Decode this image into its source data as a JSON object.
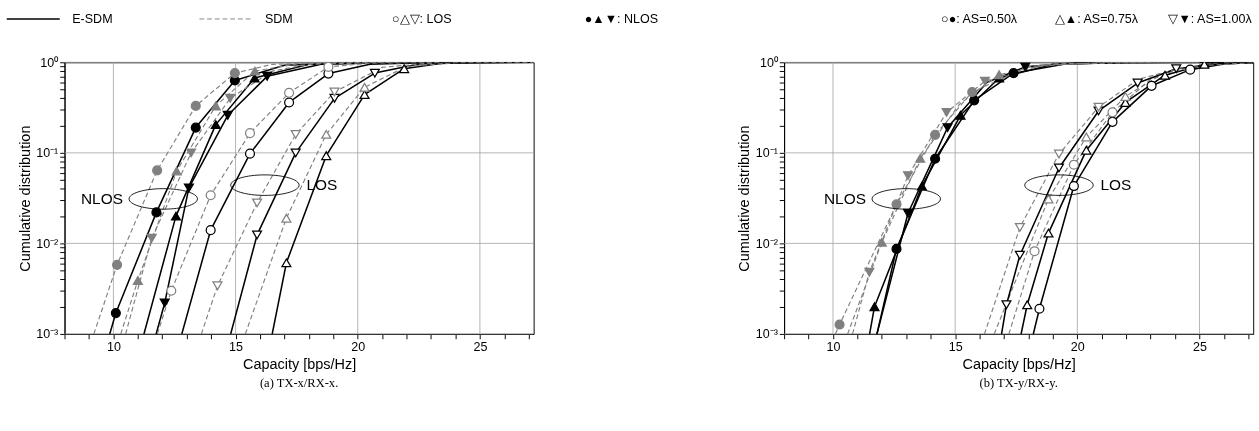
{
  "chart_data": [
    {
      "type": "line",
      "title": "(a) TX-x/RX-x.",
      "xlabel": "Capacity [bps/Hz]",
      "ylabel": "Cumulative distribution",
      "log": "y",
      "grid": true,
      "xlim": [
        8,
        27.2
      ],
      "ylim": [
        0.001,
        1
      ],
      "xticks": [
        {
          "value": 8,
          "label": null
        },
        {
          "value": 9,
          "label": null
        },
        10,
        {
          "value": 11,
          "label": null
        },
        {
          "value": 12,
          "label": null
        },
        {
          "value": 13,
          "label": null
        },
        {
          "value": 14,
          "label": null
        },
        15,
        {
          "value": 16,
          "label": null
        },
        {
          "value": 17,
          "label": null
        },
        {
          "value": 18,
          "label": null
        },
        {
          "value": 19,
          "label": null
        },
        20,
        {
          "value": 21,
          "label": null
        },
        {
          "value": 22,
          "label": null
        },
        {
          "value": 23,
          "label": null
        },
        {
          "value": 24,
          "label": null
        },
        25,
        {
          "value": 26,
          "label": null
        },
        {
          "value": 27,
          "label": null
        }
      ],
      "yticks": [
        {
          "value": 0.001,
          "label": "10⁻³"
        },
        {
          "value": 0.002,
          "label": null
        },
        {
          "value": 0.003,
          "label": null
        },
        {
          "value": 0.004,
          "label": null
        },
        {
          "value": 0.005,
          "label": null
        },
        {
          "value": 0.006,
          "label": null
        },
        {
          "value": 0.007,
          "label": null
        },
        {
          "value": 0.008,
          "label": null
        },
        {
          "value": 0.009,
          "label": null
        },
        {
          "value": 0.01,
          "label": "10⁻²"
        },
        {
          "value": 0.02,
          "label": null
        },
        {
          "value": 0.03,
          "label": null
        },
        {
          "value": 0.04,
          "label": null
        },
        {
          "value": 0.05,
          "label": null
        },
        {
          "value": 0.06,
          "label": null
        },
        {
          "value": 0.07,
          "label": null
        },
        {
          "value": 0.08,
          "label": null
        },
        {
          "value": 0.09,
          "label": null
        },
        {
          "value": 0.1,
          "label": "10⁻¹"
        },
        {
          "value": 0.2,
          "label": null
        },
        {
          "value": 0.3,
          "label": null
        },
        {
          "value": 0.4,
          "label": null
        },
        {
          "value": 0.5,
          "label": null
        },
        {
          "value": 0.6,
          "label": null
        },
        {
          "value": 0.7,
          "label": null
        },
        {
          "value": 0.8,
          "label": null
        },
        {
          "value": 0.9,
          "label": null
        },
        {
          "value": 1,
          "label": "10⁰"
        }
      ],
      "annotations": [
        "E-SDM",
        "SDM",
        "○△▽: LOS",
        "●▲▼: NLOS",
        {
          "text": "NLOS",
          "x": 12.04,
          "y": 0.031
        },
        {
          "text": "LOS",
          "x": 16.2,
          "y": 0.044
        }
      ],
      "series": [
        {
          "type": "line",
          "color": "#000000",
          "line_style": "solid",
          "marker": "none",
          "x": [
            9.85,
            10.1,
            11.76,
            13.37,
            14.97,
            17,
            20,
            24
          ],
          "values": [
            0.001,
            0.0017,
            0.022,
            0.19,
            0.63,
            0.93,
            0.995,
            1
          ]
        },
        {
          "type": "scatter",
          "color": "#000000",
          "marker": "circle",
          "x": [
            10.1,
            11.76,
            13.37,
            14.97
          ],
          "values": [
            0.0017,
            0.022,
            0.19,
            0.63
          ]
        },
        {
          "type": "line",
          "color": "#000000",
          "line_style": "solid",
          "marker": "none",
          "x": [
            11.25,
            12.56,
            14.19,
            15.78,
            18,
            21,
            25
          ],
          "values": [
            0.001,
            0.02,
            0.205,
            0.67,
            0.95,
            0.997,
            1
          ]
        },
        {
          "type": "scatter",
          "color": "#000000",
          "marker": "triangle",
          "x": [
            12.56,
            14.19,
            15.78
          ],
          "values": [
            0.02,
            0.205,
            0.67
          ]
        },
        {
          "type": "line",
          "color": "#000000",
          "line_style": "solid",
          "marker": "none",
          "x": [
            11.75,
            12.1,
            13.09,
            14.68,
            16.29,
            18.5,
            21.5,
            25
          ],
          "values": [
            0.001,
            0.0022,
            0.041,
            0.26,
            0.7,
            0.95,
            0.997,
            1
          ]
        },
        {
          "type": "scatter",
          "color": "#000000",
          "marker": "triangle-down",
          "x": [
            12.1,
            13.09,
            14.68,
            16.29
          ],
          "values": [
            0.0022,
            0.041,
            0.26,
            0.7
          ]
        },
        {
          "type": "line",
          "color": "#808080",
          "line_style": "dashed",
          "marker": "none",
          "x": [
            9.2,
            10.15,
            11.79,
            13.37,
            14.97,
            16.5,
            19,
            23
          ],
          "values": [
            0.001,
            0.0058,
            0.064,
            0.33,
            0.76,
            0.95,
            0.995,
            1
          ]
        },
        {
          "type": "scatter",
          "color": "#808080",
          "marker": "circle",
          "x": [
            10.15,
            11.79,
            13.37,
            14.97
          ],
          "values": [
            0.0058,
            0.064,
            0.33,
            0.76
          ]
        },
        {
          "type": "line",
          "color": "#808080",
          "line_style": "dashed",
          "marker": "none",
          "x": [
            10.3,
            11.0,
            12.59,
            14.19,
            15.79,
            17.5,
            20,
            24
          ],
          "values": [
            0.001,
            0.0039,
            0.063,
            0.33,
            0.8,
            0.96,
            0.997,
            1
          ]
        },
        {
          "type": "scatter",
          "color": "#808080",
          "marker": "triangle",
          "x": [
            11.0,
            12.59,
            14.19,
            15.79
          ],
          "values": [
            0.0039,
            0.063,
            0.33,
            0.8
          ]
        },
        {
          "type": "line",
          "color": "#808080",
          "line_style": "dashed",
          "marker": "none",
          "x": [
            10.5,
            11.57,
            13.18,
            14.78,
            16.5,
            18,
            21,
            25
          ],
          "values": [
            0.001,
            0.0114,
            0.1,
            0.4,
            0.8,
            0.95,
            0.997,
            1
          ]
        },
        {
          "type": "scatter",
          "color": "#808080",
          "marker": "triangle-down",
          "x": [
            11.57,
            13.18,
            14.78
          ],
          "values": [
            0.0114,
            0.1,
            0.4
          ]
        },
        {
          "type": "line",
          "color": "#000000",
          "line_style": "solid",
          "marker": "none",
          "x": [
            12.8,
            13.98,
            15.59,
            17.19,
            18.8,
            20.5,
            23,
            26
          ],
          "values": [
            0.001,
            0.014,
            0.098,
            0.36,
            0.75,
            0.95,
            0.997,
            1
          ]
        },
        {
          "type": "scatter",
          "color": "#000000",
          "marker": "circle-open",
          "x": [
            13.98,
            15.59,
            17.19,
            18.8
          ],
          "values": [
            0.014,
            0.098,
            0.36,
            0.75
          ]
        },
        {
          "type": "line",
          "color": "#808080",
          "line_style": "dashed",
          "marker": "none",
          "x": [
            11.8,
            12.37,
            13.98,
            15.59,
            17.19,
            18.8,
            20.5,
            24
          ],
          "values": [
            0.001,
            0.003,
            0.034,
            0.165,
            0.46,
            0.89,
            0.98,
            1
          ]
        },
        {
          "type": "scatter",
          "color": "#808080",
          "marker": "circle-open",
          "x": [
            12.37,
            13.98,
            15.59,
            17.19,
            18.8
          ],
          "values": [
            0.003,
            0.034,
            0.165,
            0.46,
            0.89
          ]
        },
        {
          "type": "line",
          "color": "#000000",
          "line_style": "solid",
          "marker": "none",
          "x": [
            14.8,
            15.88,
            17.46,
            19.05,
            20.7,
            22.5,
            25,
            27.2
          ],
          "values": [
            0.001,
            0.0124,
            0.1,
            0.4,
            0.76,
            0.96,
            0.998,
            1
          ]
        },
        {
          "type": "scatter",
          "color": "#000000",
          "marker": "triangle-down-open",
          "x": [
            15.88,
            17.46,
            19.05,
            20.7
          ],
          "values": [
            0.0124,
            0.1,
            0.4,
            0.76
          ]
        },
        {
          "type": "line",
          "color": "#808080",
          "line_style": "dashed",
          "marker": "none",
          "x": [
            13.6,
            14.26,
            15.88,
            17.46,
            19.05,
            21,
            23,
            26
          ],
          "values": [
            0.001,
            0.0034,
            0.028,
            0.16,
            0.47,
            0.88,
            0.98,
            1
          ]
        },
        {
          "type": "scatter",
          "color": "#808080",
          "marker": "triangle-down-open",
          "x": [
            14.26,
            15.88,
            17.46,
            19.05
          ],
          "values": [
            0.0034,
            0.028,
            0.16,
            0.47
          ]
        },
        {
          "type": "line",
          "color": "#000000",
          "line_style": "solid",
          "marker": "none",
          "x": [
            16.5,
            17.08,
            18.71,
            20.28,
            21.9,
            23.5,
            27.2
          ],
          "values": [
            0.001,
            0.0061,
            0.093,
            0.44,
            0.85,
            0.98,
            1
          ]
        },
        {
          "type": "scatter",
          "color": "#000000",
          "marker": "triangle-open",
          "x": [
            17.08,
            18.71,
            20.28,
            21.9
          ],
          "values": [
            0.0061,
            0.093,
            0.44,
            0.85
          ]
        },
        {
          "type": "line",
          "color": "#808080",
          "line_style": "dashed",
          "marker": "none",
          "x": [
            15.4,
            17.08,
            18.71,
            20.28,
            22,
            24,
            27.2
          ],
          "values": [
            0.001,
            0.019,
            0.16,
            0.53,
            0.9,
            0.99,
            1
          ]
        },
        {
          "type": "scatter",
          "color": "#808080",
          "marker": "triangle-open",
          "x": [
            17.08,
            18.71,
            20.28
          ],
          "values": [
            0.019,
            0.16,
            0.53
          ]
        }
      ]
    },
    {
      "type": "line",
      "title": "(b) TX-y/RX-y.",
      "xlabel": "Capacity [bps/Hz]",
      "ylabel": "Cumulative distribution",
      "log": "y",
      "grid": true,
      "xlim": [
        8,
        27.2
      ],
      "ylim": [
        0.001,
        1
      ],
      "xticks": [
        {
          "value": 8,
          "label": null
        },
        {
          "value": 9,
          "label": null
        },
        10,
        {
          "value": 11,
          "label": null
        },
        {
          "value": 12,
          "label": null
        },
        {
          "value": 13,
          "label": null
        },
        {
          "value": 14,
          "label": null
        },
        15,
        {
          "value": 16,
          "label": null
        },
        {
          "value": 17,
          "label": null
        },
        {
          "value": 18,
          "label": null
        },
        {
          "value": 19,
          "label": null
        },
        20,
        {
          "value": 21,
          "label": null
        },
        {
          "value": 22,
          "label": null
        },
        {
          "value": 23,
          "label": null
        },
        {
          "value": 24,
          "label": null
        },
        25,
        {
          "value": 26,
          "label": null
        },
        {
          "value": 27,
          "label": null
        }
      ],
      "yticks": [
        {
          "value": 0.001,
          "label": "10⁻³"
        },
        {
          "value": 0.002,
          "label": null
        },
        {
          "value": 0.003,
          "label": null
        },
        {
          "value": 0.004,
          "label": null
        },
        {
          "value": 0.005,
          "label": null
        },
        {
          "value": 0.006,
          "label": null
        },
        {
          "value": 0.007,
          "label": null
        },
        {
          "value": 0.008,
          "label": null
        },
        {
          "value": 0.009,
          "label": null
        },
        {
          "value": 0.01,
          "label": "10⁻²"
        },
        {
          "value": 0.02,
          "label": null
        },
        {
          "value": 0.03,
          "label": null
        },
        {
          "value": 0.04,
          "label": null
        },
        {
          "value": 0.05,
          "label": null
        },
        {
          "value": 0.06,
          "label": null
        },
        {
          "value": 0.07,
          "label": null
        },
        {
          "value": 0.08,
          "label": null
        },
        {
          "value": 0.09,
          "label": null
        },
        {
          "value": 0.1,
          "label": "10⁻¹"
        },
        {
          "value": 0.2,
          "label": null
        },
        {
          "value": 0.3,
          "label": null
        },
        {
          "value": 0.4,
          "label": null
        },
        {
          "value": 0.5,
          "label": null
        },
        {
          "value": 0.6,
          "label": null
        },
        {
          "value": 0.7,
          "label": null
        },
        {
          "value": 0.8,
          "label": null
        },
        {
          "value": 0.9,
          "label": null
        },
        {
          "value": 1,
          "label": "10⁰"
        }
      ],
      "annotations": [
        "○●: AS=0.50λ",
        "△▲: AS=0.75λ",
        "▽▼: AS=1.00λ",
        {
          "text": "NLOS",
          "x": 13.0,
          "y": 0.031
        },
        {
          "text": "LOS",
          "x": 19.25,
          "y": 0.044
        }
      ],
      "series": [
        {
          "type": "line",
          "color": "#000000",
          "line_style": "solid",
          "marker": "none",
          "x": [
            11.8,
            12.6,
            14.18,
            15.78,
            17.39,
            19.5,
            22,
            26
          ],
          "values": [
            0.001,
            0.0087,
            0.086,
            0.38,
            0.76,
            0.96,
            0.998,
            1
          ]
        },
        {
          "type": "scatter",
          "color": "#000000",
          "marker": "circle",
          "x": [
            12.6,
            14.18,
            15.78,
            17.39
          ],
          "values": [
            0.0087,
            0.086,
            0.38,
            0.76
          ]
        },
        {
          "type": "line",
          "color": "#000000",
          "line_style": "solid",
          "marker": "none",
          "x": [
            11.5,
            11.7,
            13.64,
            15.22,
            16.8,
            19,
            22,
            26
          ],
          "values": [
            0.001,
            0.002,
            0.043,
            0.26,
            0.67,
            0.95,
            0.997,
            1
          ]
        },
        {
          "type": "scatter",
          "color": "#000000",
          "marker": "triangle",
          "x": [
            11.7,
            13.64,
            15.22,
            16.8
          ],
          "values": [
            0.002,
            0.043,
            0.26,
            0.67
          ]
        },
        {
          "type": "line",
          "color": "#000000",
          "line_style": "solid",
          "marker": "none",
          "x": [
            11.8,
            13.07,
            14.69,
            16.3,
            17.87,
            20,
            24
          ],
          "values": [
            0.001,
            0.0215,
            0.19,
            0.6,
            0.89,
            0.99,
            1
          ]
        },
        {
          "type": "scatter",
          "color": "#000000",
          "marker": "triangle-down",
          "x": [
            13.07,
            14.69,
            17.87
          ],
          "values": [
            0.0215,
            0.19,
            0.89
          ]
        },
        {
          "type": "line",
          "color": "#808080",
          "line_style": "dashed",
          "marker": "none",
          "x": [
            10.1,
            10.27,
            12.6,
            14.18,
            15.7,
            18,
            21,
            25
          ],
          "values": [
            0.001,
            0.00127,
            0.027,
            0.158,
            0.47,
            0.9,
            0.995,
            1
          ]
        },
        {
          "type": "scatter",
          "color": "#808080",
          "marker": "circle",
          "x": [
            10.27,
            12.6,
            14.18,
            15.7
          ],
          "values": [
            0.00127,
            0.027,
            0.158,
            0.47
          ]
        },
        {
          "type": "line",
          "color": "#808080",
          "line_style": "dashed",
          "marker": "none",
          "x": [
            10.6,
            12.0,
            13.57,
            15.2,
            16.8,
            19,
            23
          ],
          "values": [
            0.001,
            0.0103,
            0.087,
            0.35,
            0.73,
            0.96,
            1
          ]
        },
        {
          "type": "scatter",
          "color": "#808080",
          "marker": "triangle",
          "x": [
            12.0,
            13.57,
            16.8
          ],
          "values": [
            0.0103,
            0.087,
            0.73
          ]
        },
        {
          "type": "line",
          "color": "#808080",
          "line_style": "dashed",
          "marker": "none",
          "x": [
            10.8,
            11.49,
            13.07,
            14.65,
            16.22,
            18.5,
            21.5,
            25
          ],
          "values": [
            0.001,
            0.0048,
            0.056,
            0.28,
            0.62,
            0.93,
            0.995,
            1
          ]
        },
        {
          "type": "scatter",
          "color": "#808080",
          "marker": "triangle-down",
          "x": [
            11.49,
            13.07,
            14.65,
            16.22
          ],
          "values": [
            0.0048,
            0.056,
            0.28,
            0.62
          ]
        },
        {
          "type": "line",
          "color": "#000000",
          "line_style": "solid",
          "marker": "none",
          "x": [
            18.2,
            18.45,
            19.86,
            21.44,
            23.04,
            24.62,
            26,
            27.2
          ],
          "values": [
            0.001,
            0.0019,
            0.043,
            0.22,
            0.55,
            0.83,
            0.96,
            0.995
          ]
        },
        {
          "type": "scatter",
          "color": "#000000",
          "marker": "circle-open",
          "x": [
            18.45,
            19.86,
            21.44,
            23.04,
            24.62
          ],
          "values": [
            0.0019,
            0.043,
            0.22,
            0.55,
            0.83
          ]
        },
        {
          "type": "line",
          "color": "#808080",
          "line_style": "dashed",
          "marker": "none",
          "x": [
            17.2,
            18.25,
            19.86,
            21.44,
            23,
            25,
            27.2
          ],
          "values": [
            0.001,
            0.0082,
            0.074,
            0.28,
            0.65,
            0.92,
            0.995
          ]
        },
        {
          "type": "scatter",
          "color": "#808080",
          "marker": "circle-open",
          "x": [
            18.25,
            19.86,
            21.44
          ],
          "values": [
            0.0082,
            0.074,
            0.28
          ]
        },
        {
          "type": "line",
          "color": "#000000",
          "line_style": "solid",
          "marker": "none",
          "x": [
            17.7,
            17.95,
            18.82,
            20.37,
            21.97,
            23.59,
            25.2,
            27.2
          ],
          "values": [
            0.001,
            0.0021,
            0.013,
            0.107,
            0.36,
            0.72,
            0.95,
            0.998
          ]
        },
        {
          "type": "scatter",
          "color": "#000000",
          "marker": "triangle-open",
          "x": [
            17.95,
            18.82,
            20.37,
            21.97,
            23.59,
            25.2
          ],
          "values": [
            0.0021,
            0.013,
            0.107,
            0.36,
            0.72,
            0.95
          ]
        },
        {
          "type": "line",
          "color": "#808080",
          "line_style": "dashed",
          "marker": "none",
          "x": [
            16.6,
            18.82,
            20.37,
            21.97,
            23.5,
            25.5,
            27.2
          ],
          "values": [
            0.001,
            0.031,
            0.15,
            0.42,
            0.75,
            0.96,
            0.995
          ]
        },
        {
          "type": "scatter",
          "color": "#808080",
          "marker": "triangle-open",
          "x": [
            18.82,
            20.37,
            21.97
          ],
          "values": [
            0.031,
            0.15,
            0.42
          ]
        },
        {
          "type": "line",
          "color": "#000000",
          "line_style": "solid",
          "marker": "none",
          "x": [
            16.9,
            17.1,
            17.65,
            19.25,
            20.87,
            22.47,
            24.05,
            26,
            27.2
          ],
          "values": [
            0.001,
            0.0021,
            0.0074,
            0.068,
            0.29,
            0.59,
            0.85,
            0.97,
            0.995
          ]
        },
        {
          "type": "scatter",
          "color": "#000000",
          "marker": "triangle-down-open",
          "x": [
            17.1,
            17.65,
            19.25,
            20.87,
            22.47,
            24.05
          ],
          "values": [
            0.0021,
            0.0074,
            0.068,
            0.29,
            0.59,
            0.85
          ]
        },
        {
          "type": "line",
          "color": "#808080",
          "line_style": "dashed",
          "marker": "none",
          "x": [
            16.2,
            17.65,
            19.25,
            20.87,
            22.5,
            24.5,
            27.2
          ],
          "values": [
            0.001,
            0.015,
            0.097,
            0.32,
            0.65,
            0.9,
            0.99
          ]
        },
        {
          "type": "scatter",
          "color": "#808080",
          "marker": "triangle-down-open",
          "x": [
            17.65,
            19.25,
            20.87
          ],
          "values": [
            0.015,
            0.097,
            0.32
          ]
        }
      ]
    }
  ]
}
